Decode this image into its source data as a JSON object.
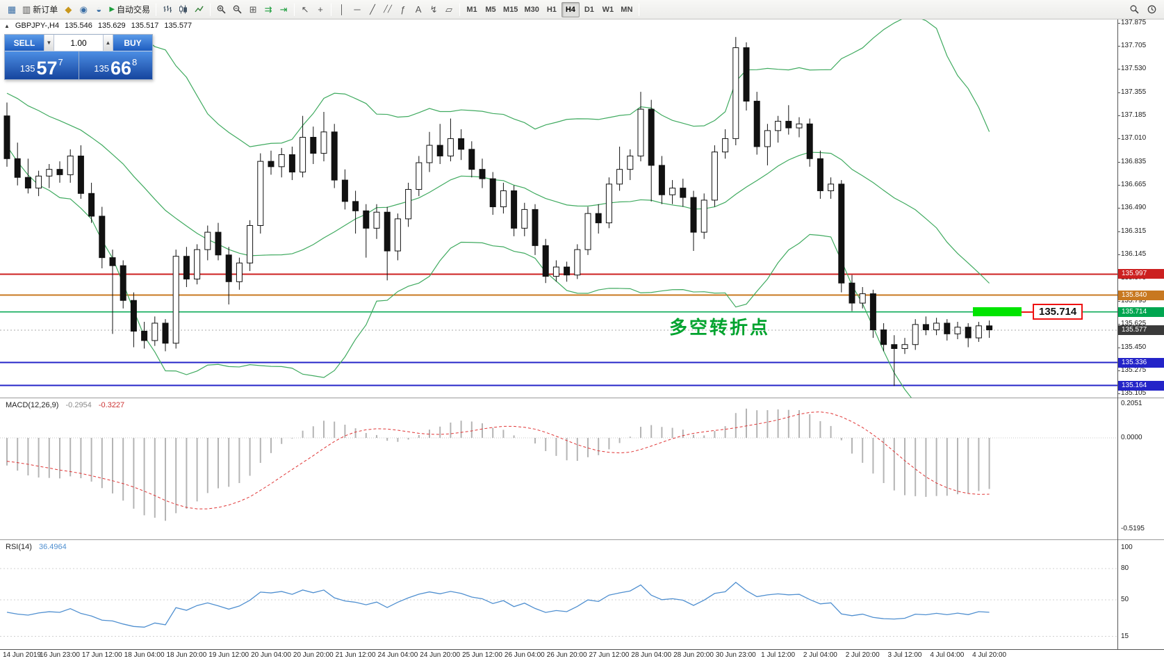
{
  "toolbar": {
    "new_order_label": "新订单",
    "autotrading_label": "自动交易",
    "timeframes": [
      "M1",
      "M5",
      "M15",
      "M30",
      "H1",
      "H4",
      "D1",
      "W1",
      "MN"
    ],
    "active_timeframe": "H4",
    "icons": {
      "new_chart": "▦",
      "new_order": "▥",
      "market_watch": "◆",
      "profiles": "◉",
      "data_window": "◒",
      "play": "▶",
      "tile": "⊞",
      "auto_scroll": "⇉",
      "chart_shift": "⇥",
      "cursor": "↖",
      "crosshair": "+",
      "vline": "│",
      "hline": "─",
      "trend": "╱",
      "channel": "╱╱",
      "fib": "ƒ",
      "text": "A",
      "arrows": "↯",
      "shapes": "▱",
      "collapse": "▲"
    }
  },
  "symbol_info": {
    "arrow": "▲",
    "symbol": "GBPJPY-,H4",
    "open": "135.546",
    "high": "135.629",
    "low": "135.517",
    "close": "135.577"
  },
  "one_click": {
    "sell_label": "SELL",
    "buy_label": "BUY",
    "lot_value": "1.00",
    "spin_down": "▼",
    "spin_up": "▲",
    "sell_price_prefix": "135",
    "sell_price_big": "57",
    "sell_price_sup": "7",
    "buy_price_prefix": "135",
    "buy_price_big": "66",
    "buy_price_sup": "8"
  },
  "annotation": {
    "text": "多空转折点",
    "color": "#00a32e"
  },
  "highlight": {
    "label": "135.714",
    "box_color": "#00e400",
    "border_color": "#ee1111"
  },
  "chart_data": {
    "type": "candlestick",
    "symbol": "GBPJPY-",
    "timeframe": "H4",
    "current_bar_ohlc": [
      135.546,
      135.629,
      135.517,
      135.577
    ],
    "y_axis_range": [
      135.05,
      137.95
    ],
    "y_ticks": [
      "137.875",
      "137.705",
      "137.530",
      "137.355",
      "137.185",
      "137.010",
      "136.835",
      "136.665",
      "136.490",
      "136.315",
      "136.145",
      "135.970",
      "135.795",
      "135.625",
      "135.450",
      "135.275",
      "135.105"
    ],
    "levels": [
      {
        "price": 135.997,
        "label": "135.997",
        "color": "#cc2020",
        "style": "solid",
        "width": 2
      },
      {
        "price": 135.84,
        "label": "135.840",
        "color": "#c87820",
        "style": "solid",
        "width": 2
      },
      {
        "price": 135.714,
        "label": "135.714",
        "color": "#00a650",
        "style": "solid",
        "width": 1.5
      },
      {
        "price": 135.577,
        "label": "135.577",
        "color": "#3a3a3a",
        "line_color": "#aaaaaa",
        "style": "dotted",
        "width": 1
      },
      {
        "price": 135.336,
        "label": "135.336",
        "color": "#2424c8",
        "style": "solid",
        "width": 2
      },
      {
        "price": 135.164,
        "label": "135.164",
        "color": "#2424c8",
        "style": "solid",
        "width": 2
      }
    ],
    "bollinger": {
      "period": 20,
      "deviation": 2,
      "color": "#3faa5f"
    },
    "macd": {
      "name": "MACD(12,26,9)",
      "value": "-0.2954",
      "signal": "-0.3227",
      "axis_ticks": [
        "0.2051",
        "0.0000",
        "-0.5195"
      ],
      "histogram_color": "#b4b4b4",
      "signal_color": "#e03535"
    },
    "rsi": {
      "name": "RSI(14)",
      "value": "36.4964",
      "axis_ticks": [
        "100",
        "80",
        "50",
        "15"
      ],
      "line_color": "#4f8fd0"
    },
    "time_labels": [
      "14 Jun 2019",
      "16 Jun 23:00",
      "17 Jun 12:00",
      "18 Jun 04:00",
      "18 Jun 20:00",
      "19 Jun 12:00",
      "20 Jun 04:00",
      "20 Jun 20:00",
      "21 Jun 12:00",
      "24 Jun 04:00",
      "24 Jun 20:00",
      "25 Jun 12:00",
      "26 Jun 04:00",
      "26 Jun 20:00",
      "27 Jun 12:00",
      "28 Jun 04:00",
      "28 Jun 20:00",
      "30 Jun 23:00",
      "1 Jul 12:00",
      "2 Jul 04:00",
      "2 Jul 20:00",
      "3 Jul 12:00",
      "4 Jul 04:00",
      "4 Jul 20:00"
    ],
    "candles": [
      [
        137.18,
        137.28,
        136.8,
        136.86
      ],
      [
        136.86,
        136.98,
        136.66,
        136.72
      ],
      [
        136.72,
        136.86,
        136.6,
        136.64
      ],
      [
        136.64,
        136.77,
        136.58,
        136.73
      ],
      [
        136.73,
        136.82,
        136.64,
        136.78
      ],
      [
        136.78,
        136.84,
        136.68,
        136.74
      ],
      [
        136.74,
        136.93,
        136.68,
        136.88
      ],
      [
        136.88,
        136.96,
        136.56,
        136.6
      ],
      [
        136.6,
        136.68,
        136.38,
        136.43
      ],
      [
        136.43,
        136.5,
        136.04,
        136.12
      ],
      [
        136.12,
        136.18,
        135.55,
        136.06
      ],
      [
        136.06,
        136.1,
        135.74,
        135.8
      ],
      [
        135.8,
        135.86,
        135.45,
        135.57
      ],
      [
        135.57,
        135.64,
        135.44,
        135.5
      ],
      [
        135.5,
        135.68,
        135.46,
        135.63
      ],
      [
        135.63,
        135.66,
        135.42,
        135.48
      ],
      [
        135.48,
        136.18,
        135.44,
        136.13
      ],
      [
        136.13,
        136.2,
        135.9,
        135.96
      ],
      [
        135.96,
        136.22,
        135.92,
        136.18
      ],
      [
        136.18,
        136.36,
        136.1,
        136.31
      ],
      [
        136.31,
        136.38,
        136.1,
        136.14
      ],
      [
        136.14,
        136.2,
        135.77,
        135.94
      ],
      [
        135.94,
        136.12,
        135.88,
        136.08
      ],
      [
        136.08,
        136.4,
        136.02,
        136.36
      ],
      [
        136.36,
        136.9,
        136.3,
        136.84
      ],
      [
        136.84,
        136.92,
        136.74,
        136.8
      ],
      [
        136.8,
        136.94,
        136.72,
        136.89
      ],
      [
        136.89,
        136.95,
        136.7,
        136.76
      ],
      [
        136.76,
        137.18,
        136.72,
        137.02
      ],
      [
        137.02,
        137.1,
        136.82,
        136.9
      ],
      [
        136.9,
        137.21,
        136.84,
        137.06
      ],
      [
        137.06,
        137.12,
        136.64,
        136.7
      ],
      [
        136.7,
        136.78,
        136.48,
        136.54
      ],
      [
        136.54,
        136.62,
        136.3,
        136.47
      ],
      [
        136.47,
        136.52,
        136.12,
        136.34
      ],
      [
        136.34,
        136.52,
        136.26,
        136.46
      ],
      [
        136.46,
        136.5,
        135.95,
        136.17
      ],
      [
        136.17,
        136.45,
        136.1,
        136.41
      ],
      [
        136.41,
        136.68,
        136.35,
        136.63
      ],
      [
        136.63,
        136.88,
        136.58,
        136.83
      ],
      [
        136.83,
        137.06,
        136.76,
        136.96
      ],
      [
        136.96,
        137.12,
        136.82,
        136.88
      ],
      [
        136.88,
        137.16,
        136.84,
        137.01
      ],
      [
        137.01,
        137.08,
        136.85,
        136.93
      ],
      [
        136.93,
        136.99,
        136.72,
        136.78
      ],
      [
        136.78,
        136.86,
        136.64,
        136.71
      ],
      [
        136.71,
        136.76,
        136.44,
        136.5
      ],
      [
        136.5,
        136.68,
        136.45,
        136.62
      ],
      [
        136.62,
        136.66,
        136.28,
        136.34
      ],
      [
        136.34,
        136.53,
        136.28,
        136.48
      ],
      [
        136.48,
        136.52,
        136.14,
        136.21
      ],
      [
        136.21,
        136.26,
        135.93,
        135.98
      ],
      [
        135.98,
        136.1,
        135.94,
        136.05
      ],
      [
        136.05,
        136.09,
        135.94,
        135.99
      ],
      [
        135.99,
        136.22,
        135.96,
        136.18
      ],
      [
        136.18,
        136.5,
        136.14,
        136.45
      ],
      [
        136.45,
        136.52,
        136.3,
        136.38
      ],
      [
        136.38,
        136.72,
        136.34,
        136.67
      ],
      [
        136.67,
        136.95,
        136.62,
        136.78
      ],
      [
        136.78,
        136.93,
        136.7,
        136.88
      ],
      [
        136.88,
        137.36,
        136.84,
        137.23
      ],
      [
        137.23,
        137.3,
        136.54,
        136.81
      ],
      [
        136.81,
        136.88,
        136.52,
        136.59
      ],
      [
        136.59,
        136.7,
        136.52,
        136.64
      ],
      [
        136.64,
        136.71,
        136.5,
        136.57
      ],
      [
        136.57,
        136.62,
        136.17,
        136.31
      ],
      [
        136.31,
        136.6,
        136.26,
        136.55
      ],
      [
        136.55,
        136.96,
        136.5,
        136.91
      ],
      [
        136.91,
        137.08,
        136.86,
        137.01
      ],
      [
        137.01,
        137.77,
        136.96,
        137.69
      ],
      [
        137.69,
        137.73,
        137.22,
        137.29
      ],
      [
        137.29,
        137.36,
        136.89,
        136.95
      ],
      [
        136.95,
        137.12,
        136.81,
        137.07
      ],
      [
        137.07,
        137.18,
        136.98,
        137.14
      ],
      [
        137.14,
        137.26,
        137.04,
        137.09
      ],
      [
        137.09,
        137.17,
        137.02,
        137.12
      ],
      [
        137.12,
        137.16,
        136.8,
        136.86
      ],
      [
        136.86,
        136.92,
        136.56,
        136.62
      ],
      [
        136.62,
        136.72,
        136.56,
        136.67
      ],
      [
        136.67,
        136.7,
        135.86,
        135.93
      ],
      [
        135.93,
        135.99,
        135.72,
        135.78
      ],
      [
        135.78,
        135.9,
        135.74,
        135.85
      ],
      [
        135.85,
        135.88,
        135.52,
        135.58
      ],
      [
        135.58,
        135.63,
        135.42,
        135.47
      ],
      [
        135.47,
        135.54,
        135.16,
        135.44
      ],
      [
        135.44,
        135.52,
        135.4,
        135.47
      ],
      [
        135.47,
        135.66,
        135.43,
        135.62
      ],
      [
        135.62,
        135.68,
        135.54,
        135.58
      ],
      [
        135.58,
        135.67,
        135.54,
        135.63
      ],
      [
        135.63,
        135.66,
        135.5,
        135.55
      ],
      [
        135.55,
        135.64,
        135.51,
        135.6
      ],
      [
        135.6,
        135.63,
        135.45,
        135.52
      ],
      [
        135.52,
        135.64,
        135.49,
        135.61
      ],
      [
        135.61,
        135.65,
        135.52,
        135.58
      ]
    ]
  }
}
